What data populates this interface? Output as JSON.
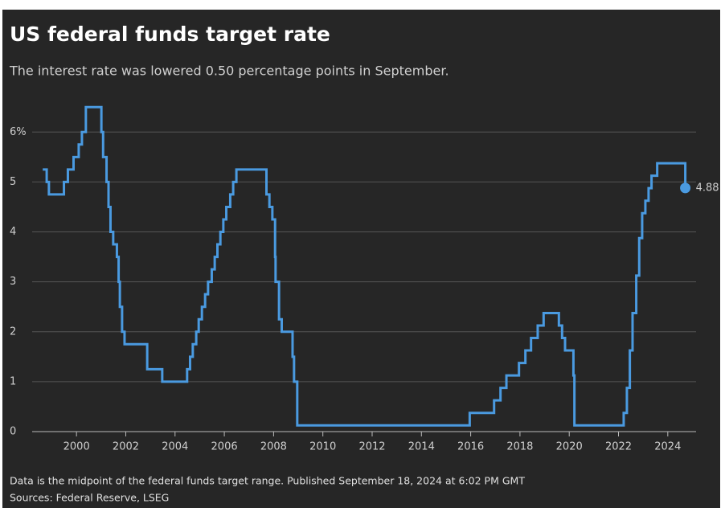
{
  "chart_data": {
    "type": "step",
    "title": "US federal funds target rate",
    "subtitle": "The interest rate was lowered 0.50 percentage points in September.",
    "note": "Data is the midpoint of the federal funds target range. Published September 18, 2024 at 6:02 PM GMT",
    "source": "Sources: Federal Reserve, LSEG",
    "x": [
      1998.63,
      1998.79,
      1998.88,
      1999.49,
      1999.65,
      1999.88,
      2000.09,
      2000.22,
      2000.38,
      2001.01,
      2001.08,
      2001.22,
      2001.3,
      2001.38,
      2001.49,
      2001.64,
      2001.71,
      2001.76,
      2001.85,
      2001.95,
      2002.87,
      2003.48,
      2004.49,
      2004.61,
      2004.72,
      2004.86,
      2004.96,
      2005.09,
      2005.22,
      2005.34,
      2005.49,
      2005.61,
      2005.72,
      2005.84,
      2005.96,
      2006.08,
      2006.24,
      2006.36,
      2006.49,
      2007.71,
      2007.83,
      2007.95,
      2008.06,
      2008.08,
      2008.22,
      2008.33,
      2008.77,
      2008.83,
      2008.96,
      2015.96,
      2016.95,
      2017.21,
      2017.45,
      2017.96,
      2018.22,
      2018.45,
      2018.72,
      2018.96,
      2019.58,
      2019.71,
      2019.83,
      2020.17,
      2020.21,
      2022.21,
      2022.34,
      2022.46,
      2022.57,
      2022.72,
      2022.84,
      2022.96,
      2023.09,
      2023.22,
      2023.34,
      2023.57,
      2024.71
    ],
    "series": [
      {
        "name": "Federal funds target rate",
        "color": "#4a9ae0",
        "values": [
          5.25,
          5.0,
          4.75,
          5.0,
          5.25,
          5.5,
          5.75,
          6.0,
          6.5,
          6.0,
          5.5,
          5.0,
          4.5,
          4.0,
          3.75,
          3.5,
          3.0,
          2.5,
          2.0,
          1.75,
          1.25,
          1.0,
          1.25,
          1.5,
          1.75,
          2.0,
          2.25,
          2.5,
          2.75,
          3.0,
          3.25,
          3.5,
          3.75,
          4.0,
          4.25,
          4.5,
          4.75,
          5.0,
          5.25,
          4.75,
          4.5,
          4.25,
          3.5,
          3.0,
          2.25,
          2.0,
          1.5,
          1.0,
          0.125,
          0.375,
          0.625,
          0.875,
          1.125,
          1.375,
          1.625,
          1.875,
          2.125,
          2.375,
          2.125,
          1.875,
          1.625,
          1.125,
          0.125,
          0.375,
          0.875,
          1.625,
          2.375,
          3.125,
          3.875,
          4.375,
          4.625,
          4.875,
          5.125,
          5.375,
          4.88
        ]
      }
    ],
    "xlim": [
      1998.2,
      2025.05
    ],
    "xticks": [
      2000,
      2002,
      2004,
      2006,
      2008,
      2010,
      2012,
      2014,
      2016,
      2018,
      2020,
      2022,
      2024
    ],
    "ylim": [
      0,
      6.6
    ],
    "yticks": [
      0,
      1,
      2,
      3,
      4,
      5,
      {
        "value": 6,
        "label": "6%"
      }
    ],
    "grid": true
  }
}
